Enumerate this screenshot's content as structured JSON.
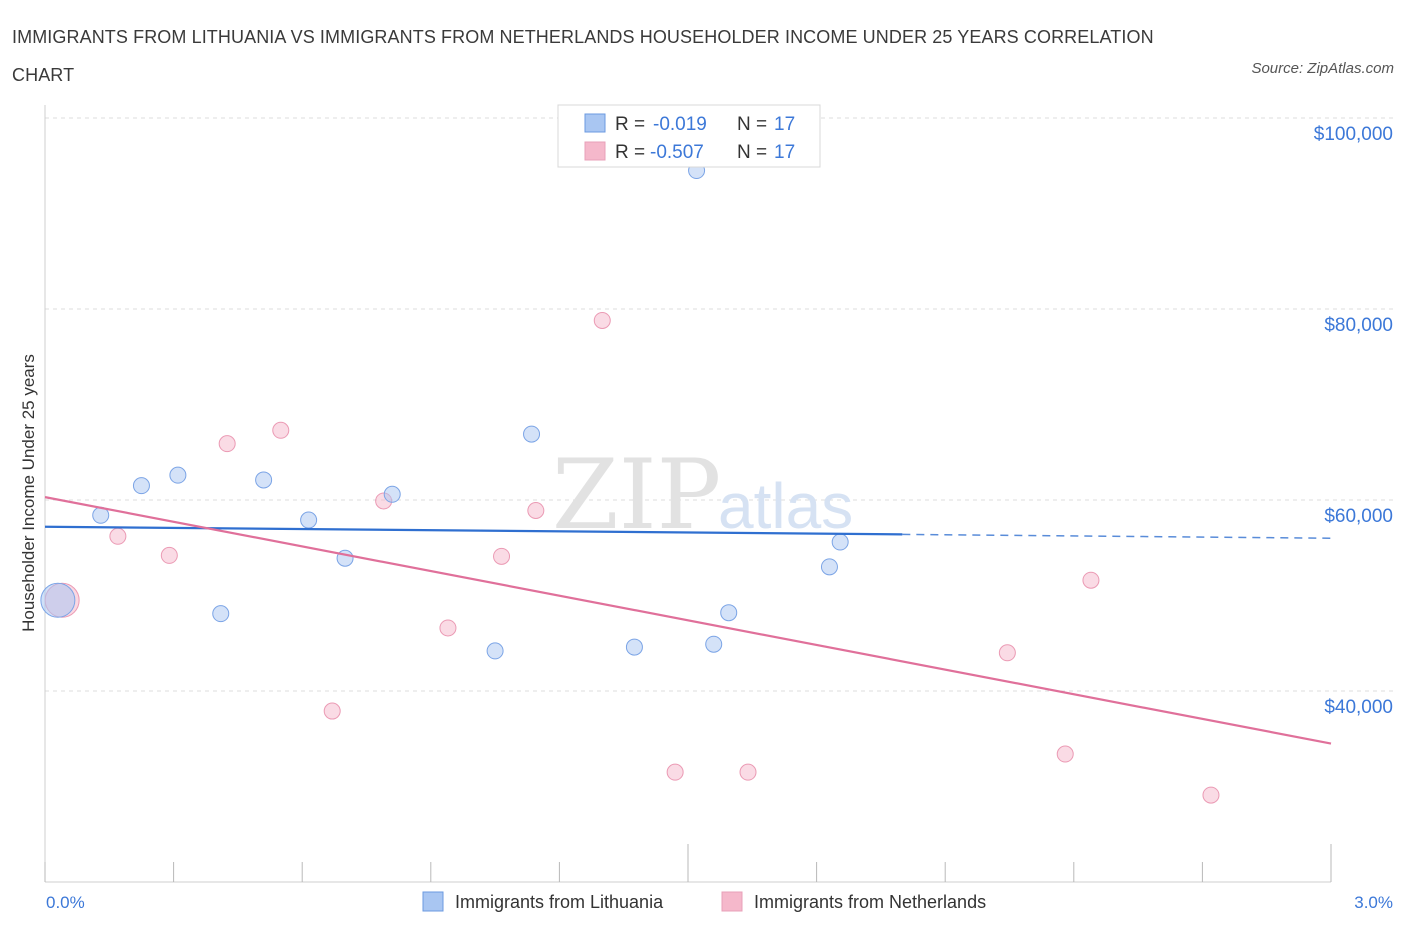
{
  "title": "IMMIGRANTS FROM LITHUANIA VS IMMIGRANTS FROM NETHERLANDS HOUSEHOLDER INCOME UNDER 25 YEARS CORRELATION CHART",
  "source": "Source: ZipAtlas.com",
  "watermark": {
    "zip": "ZIP",
    "atlas": "atlas"
  },
  "legend": {
    "r_label": "R =",
    "n_label": "N =",
    "rows": [
      {
        "r": "-0.019",
        "n": "17",
        "color": "#a9c6f2"
      },
      {
        "r": "-0.507",
        "n": "17",
        "color": "#f5b8cb"
      }
    ]
  },
  "colors": {
    "blue_point": "#a9c6f2",
    "blue_line": "#2f6fd0",
    "pink_point": "#f5b8cb",
    "pink_line": "#e0709a",
    "tick_text": "#3c78d8",
    "grid": "#dcdcdc"
  },
  "chart_data": {
    "type": "scatter",
    "xlabel": "",
    "ylabel": "Householder Income Under 25 years",
    "xlim": [
      0.0,
      3.0
    ],
    "ylim": [
      20000,
      102000
    ],
    "x_tick_labels": {
      "left": "0.0%",
      "right": "3.0%"
    },
    "y_ticks": [
      {
        "value": 100000,
        "label": "$100,000"
      },
      {
        "value": 80000,
        "label": "$80,000"
      },
      {
        "value": 60000,
        "label": "$60,000"
      },
      {
        "value": 40000,
        "label": "$40,000"
      }
    ],
    "series": [
      {
        "name": "Immigrants from Lithuania",
        "color": "#a9c6f2",
        "points": [
          {
            "x": 0.03,
            "y": 49500,
            "big": true
          },
          {
            "x": 0.13,
            "y": 58400
          },
          {
            "x": 0.225,
            "y": 61500
          },
          {
            "x": 0.31,
            "y": 62600
          },
          {
            "x": 0.41,
            "y": 48100
          },
          {
            "x": 0.51,
            "y": 62100
          },
          {
            "x": 0.615,
            "y": 57900
          },
          {
            "x": 0.7,
            "y": 53900
          },
          {
            "x": 0.81,
            "y": 60600
          },
          {
            "x": 1.05,
            "y": 44200
          },
          {
            "x": 1.135,
            "y": 66900
          },
          {
            "x": 1.375,
            "y": 44600
          },
          {
            "x": 1.52,
            "y": 94500
          },
          {
            "x": 1.56,
            "y": 44900
          },
          {
            "x": 1.595,
            "y": 48200
          },
          {
            "x": 1.83,
            "y": 53000
          },
          {
            "x": 1.855,
            "y": 55600
          }
        ],
        "trend": {
          "x_start": 0.0,
          "y_start": 57200,
          "x_solid_end": 2.0,
          "x_end": 3.0,
          "y_end": 56000
        }
      },
      {
        "name": "Immigrants from Netherlands",
        "color": "#f5b8cb",
        "points": [
          {
            "x": 0.04,
            "y": 49500,
            "big": true
          },
          {
            "x": 0.17,
            "y": 56200
          },
          {
            "x": 0.29,
            "y": 54200
          },
          {
            "x": 0.425,
            "y": 65900
          },
          {
            "x": 0.55,
            "y": 67300
          },
          {
            "x": 0.67,
            "y": 37900
          },
          {
            "x": 0.79,
            "y": 59900
          },
          {
            "x": 0.94,
            "y": 46600
          },
          {
            "x": 1.065,
            "y": 54100
          },
          {
            "x": 1.145,
            "y": 58900
          },
          {
            "x": 1.3,
            "y": 78800
          },
          {
            "x": 1.47,
            "y": 31500
          },
          {
            "x": 1.64,
            "y": 31500
          },
          {
            "x": 2.245,
            "y": 44000
          },
          {
            "x": 2.38,
            "y": 33400
          },
          {
            "x": 2.44,
            "y": 51600
          },
          {
            "x": 2.72,
            "y": 29100
          }
        ],
        "trend": {
          "x_start": 0.0,
          "y_start": 60300,
          "x_end": 3.0,
          "y_end": 34500
        }
      }
    ],
    "grid": true,
    "legend_position": "top-center"
  }
}
